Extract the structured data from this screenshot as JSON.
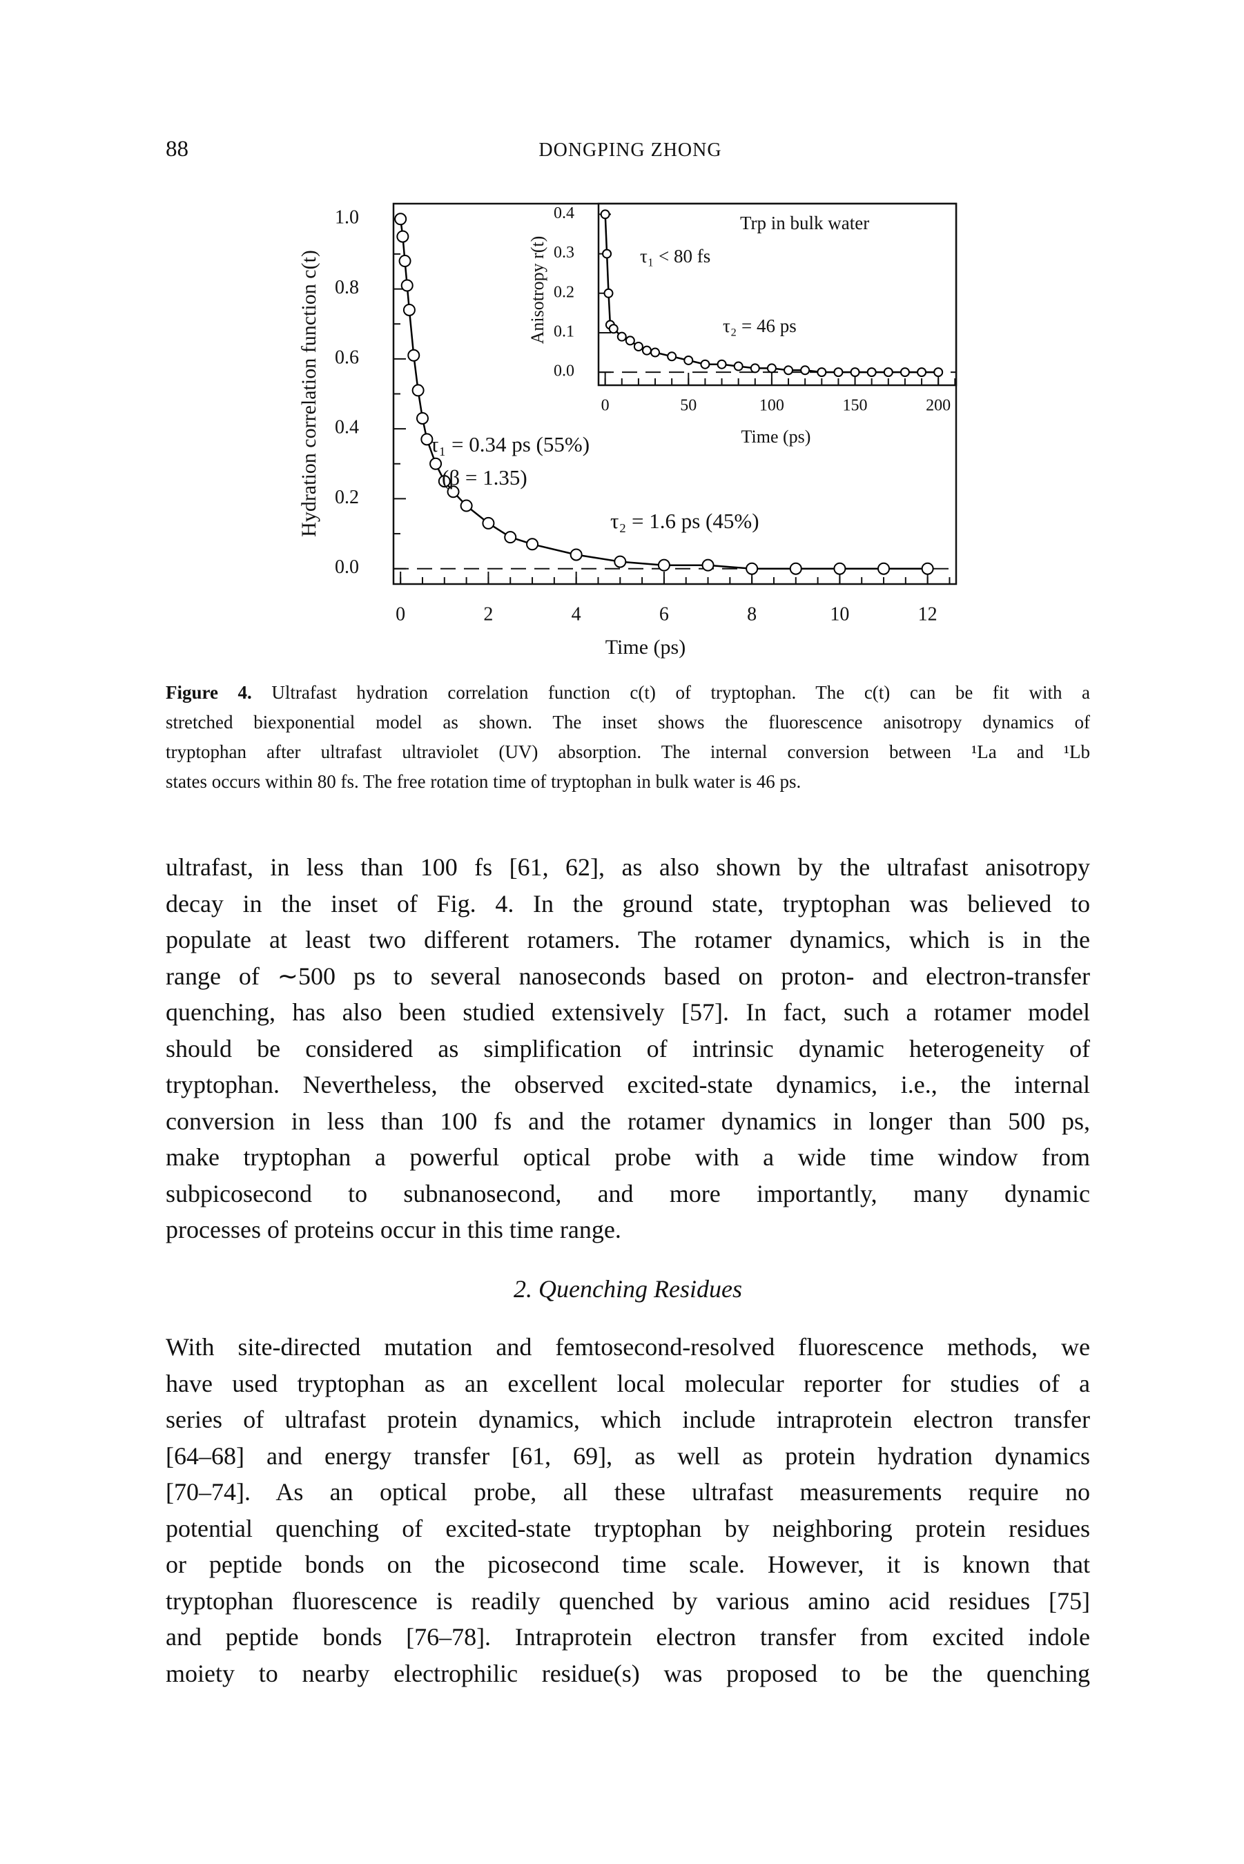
{
  "header": {
    "page_number": "88",
    "running_title": "DONGPING ZHONG"
  },
  "chart_data": [
    {
      "type": "scatter",
      "x_label": "Time (ps)",
      "y_label": "Hydration correlation function c(t)",
      "x": [
        0,
        0.05,
        0.1,
        0.15,
        0.2,
        0.3,
        0.4,
        0.5,
        0.6,
        0.8,
        1.0,
        1.2,
        1.5,
        2,
        2.5,
        3,
        4,
        5,
        6,
        7,
        8,
        9,
        10,
        11,
        12
      ],
      "values": [
        1.0,
        0.95,
        0.88,
        0.81,
        0.74,
        0.61,
        0.51,
        0.43,
        0.37,
        0.3,
        0.25,
        0.22,
        0.18,
        0.13,
        0.09,
        0.07,
        0.04,
        0.02,
        0.01,
        0.01,
        0,
        0,
        0,
        0,
        0
      ],
      "color": "#000000",
      "fit_line": true,
      "xlim": [
        -0.16,
        12.65
      ],
      "ylim": [
        -0.044,
        1.044
      ],
      "xticks": [
        0,
        2,
        4,
        6,
        8,
        10,
        12
      ],
      "yticks": [
        {
          "value": 0,
          "label": "0.0"
        },
        0.2,
        0.4,
        0.6,
        0.8,
        {
          "value": 1,
          "label": "1.0"
        }
      ],
      "xminorticks": [
        0,
        0.5,
        1,
        1.5,
        2,
        2.5,
        3,
        3.5,
        4,
        4.5,
        5,
        5.5,
        6,
        6.5,
        7,
        7.5,
        8,
        8.5,
        9,
        9.5,
        10,
        10.5,
        11,
        11.5,
        12,
        12.5
      ],
      "yminorticks": [
        0.1,
        0.3,
        0.5,
        0.7,
        0.9
      ],
      "annotations": [
        "τ₁ = 0.34 ps (55%)",
        "(β = 1.35)",
        "τ₂ = 1.6 ps (45%)"
      ]
    },
    {
      "type": "scatter",
      "x_label": "Time (ps)",
      "y_label": "Anisotropy r(t)",
      "x": [
        0,
        1,
        2,
        3,
        5,
        10,
        15,
        20,
        25,
        30,
        40,
        50,
        60,
        70,
        80,
        90,
        100,
        110,
        120,
        130,
        140,
        150,
        160,
        170,
        180,
        190,
        200
      ],
      "values": [
        0.4,
        0.3,
        0.2,
        0.12,
        0.11,
        0.09,
        0.08,
        0.065,
        0.055,
        0.05,
        0.04,
        0.03,
        0.02,
        0.02,
        0.015,
        0.01,
        0.01,
        0.005,
        0.005,
        0,
        0,
        0,
        0,
        0,
        0,
        0,
        0
      ],
      "color": "#000000",
      "fit_line": true,
      "xlim": [
        -4,
        210.7
      ],
      "ylim": [
        -0.033,
        0.427
      ],
      "xticks": [
        0,
        50,
        100,
        150,
        200
      ],
      "yticks": [
        {
          "value": 0,
          "label": "0.0"
        },
        0.1,
        0.2,
        0.3,
        0.4
      ],
      "xminorticks": [
        0,
        10,
        20,
        30,
        40,
        50,
        60,
        70,
        80,
        90,
        100,
        110,
        120,
        130,
        140,
        150,
        160,
        170,
        180,
        190,
        200,
        210
      ],
      "yminorticks": [],
      "annotations": [
        "Trp in bulk water",
        "τ₁ < 80 fs",
        "τ₂ = 46 ps"
      ]
    }
  ],
  "caption": {
    "label": "Figure 4.",
    "lines": [
      "Ultrafast hydration correlation function c(t) of tryptophan. The c(t) can be fit with a",
      "stretched biexponential model as shown. The inset shows the fluorescence anisotropy dynamics of",
      "tryptophan after ultrafast ultraviolet (UV) absorption. The internal conversion between ¹La and ¹Lb",
      "states occurs within 80 fs. The free rotation time of tryptophan in bulk water is 46 ps."
    ]
  },
  "body": {
    "paragraphs": [
      {
        "lines": [
          "ultrafast, in less than 100 fs [61, 62], as also shown by the ultrafast anisotropy",
          "decay in the inset of Fig. 4. In the ground state, tryptophan was believed to",
          "populate at least two different rotamers. The rotamer dynamics, which is in the",
          "range of ∼500 ps to several nanoseconds based on proton- and electron-transfer",
          "quenching, has also been studied extensively [57]. In fact, such a rotamer model",
          "should be considered as simplification of intrinsic dynamic heterogeneity of",
          "tryptophan. Nevertheless, the observed excited-state dynamics, i.e., the internal",
          "conversion in less than 100 fs and the rotamer dynamics in longer than 500 ps,",
          "make tryptophan a powerful optical probe with a wide time window from",
          "subpicosecond to subnanosecond, and more importantly, many dynamic",
          "processes of proteins occur in this time range."
        ]
      },
      {
        "heading": "2. Quenching Residues",
        "lines": [
          "With site-directed mutation and femtosecond-resolved fluorescence methods, we",
          "have used tryptophan as an excellent local molecular reporter for studies of a",
          "series of ultrafast protein dynamics, which include intraprotein electron transfer",
          "[64–68] and energy transfer [61, 69], as well as protein hydration dynamics",
          "[70–74]. As an optical probe, all these ultrafast measurements require no",
          "potential quenching of excited-state tryptophan by neighboring protein residues",
          "or peptide bonds on the picosecond time scale. However, it is known that",
          "tryptophan fluorescence is readily quenched by various amino acid residues [75]",
          "and peptide bonds [76–78]. Intraprotein electron transfer from excited indole",
          "moiety to nearby electrophilic residue(s) was proposed to be the quenching"
        ]
      }
    ]
  }
}
